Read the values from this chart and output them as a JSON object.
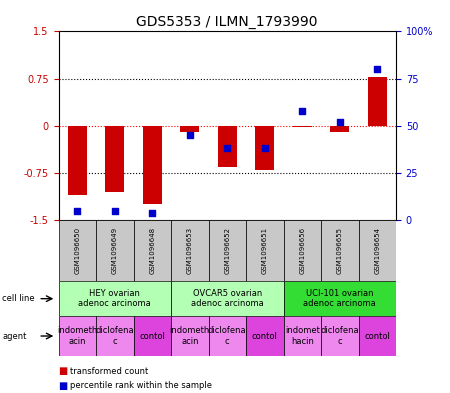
{
  "title": "GDS5353 / ILMN_1793990",
  "samples": [
    "GSM1096650",
    "GSM1096649",
    "GSM1096648",
    "GSM1096653",
    "GSM1096652",
    "GSM1096651",
    "GSM1096656",
    "GSM1096655",
    "GSM1096654"
  ],
  "red_values": [
    -1.1,
    -1.05,
    -1.25,
    -0.1,
    -0.65,
    -0.7,
    -0.02,
    -0.1,
    0.77
  ],
  "blue_values": [
    5,
    5,
    4,
    45,
    38,
    38,
    58,
    52,
    80
  ],
  "ylim_left": [
    -1.5,
    1.5
  ],
  "ylim_right": [
    0,
    100
  ],
  "yticks_left": [
    -1.5,
    -0.75,
    0,
    0.75,
    1.5
  ],
  "ytick_labels_left": [
    "-1.5",
    "-0.75",
    "0",
    "0.75",
    "1.5"
  ],
  "yticks_right": [
    0,
    25,
    50,
    75,
    100
  ],
  "ytick_labels_right": [
    "0",
    "25",
    "50",
    "75",
    "100%"
  ],
  "hlines_dotted": [
    -0.75,
    0.75
  ],
  "hline_red": 0,
  "cell_lines": [
    {
      "label": "HEY ovarian\nadenoc arcinoma",
      "start": 0,
      "end": 3,
      "color": "#b3ffb3"
    },
    {
      "label": "OVCAR5 ovarian\nadenoc arcinoma",
      "start": 3,
      "end": 6,
      "color": "#b3ffb3"
    },
    {
      "label": "UCI-101 ovarian\nadenoc arcinoma",
      "start": 6,
      "end": 9,
      "color": "#33dd33"
    }
  ],
  "agents": [
    {
      "label": "indometh\nacin",
      "start": 0,
      "end": 1,
      "color": "#ee88ee"
    },
    {
      "label": "diclofena\nc",
      "start": 1,
      "end": 2,
      "color": "#ee88ee"
    },
    {
      "label": "contol",
      "start": 2,
      "end": 3,
      "color": "#dd44dd"
    },
    {
      "label": "indometh\nacin",
      "start": 3,
      "end": 4,
      "color": "#ee88ee"
    },
    {
      "label": "diclofena\nc",
      "start": 4,
      "end": 5,
      "color": "#ee88ee"
    },
    {
      "label": "contol",
      "start": 5,
      "end": 6,
      "color": "#dd44dd"
    },
    {
      "label": "indomet\nhacin",
      "start": 6,
      "end": 7,
      "color": "#ee88ee"
    },
    {
      "label": "diclofena\nc",
      "start": 7,
      "end": 8,
      "color": "#ee88ee"
    },
    {
      "label": "contol",
      "start": 8,
      "end": 9,
      "color": "#dd44dd"
    }
  ],
  "bar_color": "#cc0000",
  "dot_color": "#0000cc",
  "bar_width": 0.5,
  "dot_size": 25,
  "sample_box_color": "#c8c8c8",
  "background_color": "#ffffff",
  "left_axis_color": "#cc0000",
  "right_axis_color": "#0000cc",
  "title_fontsize": 10,
  "tick_fontsize": 7,
  "sample_fontsize": 5,
  "annot_fontsize": 6,
  "legend_fontsize": 7
}
